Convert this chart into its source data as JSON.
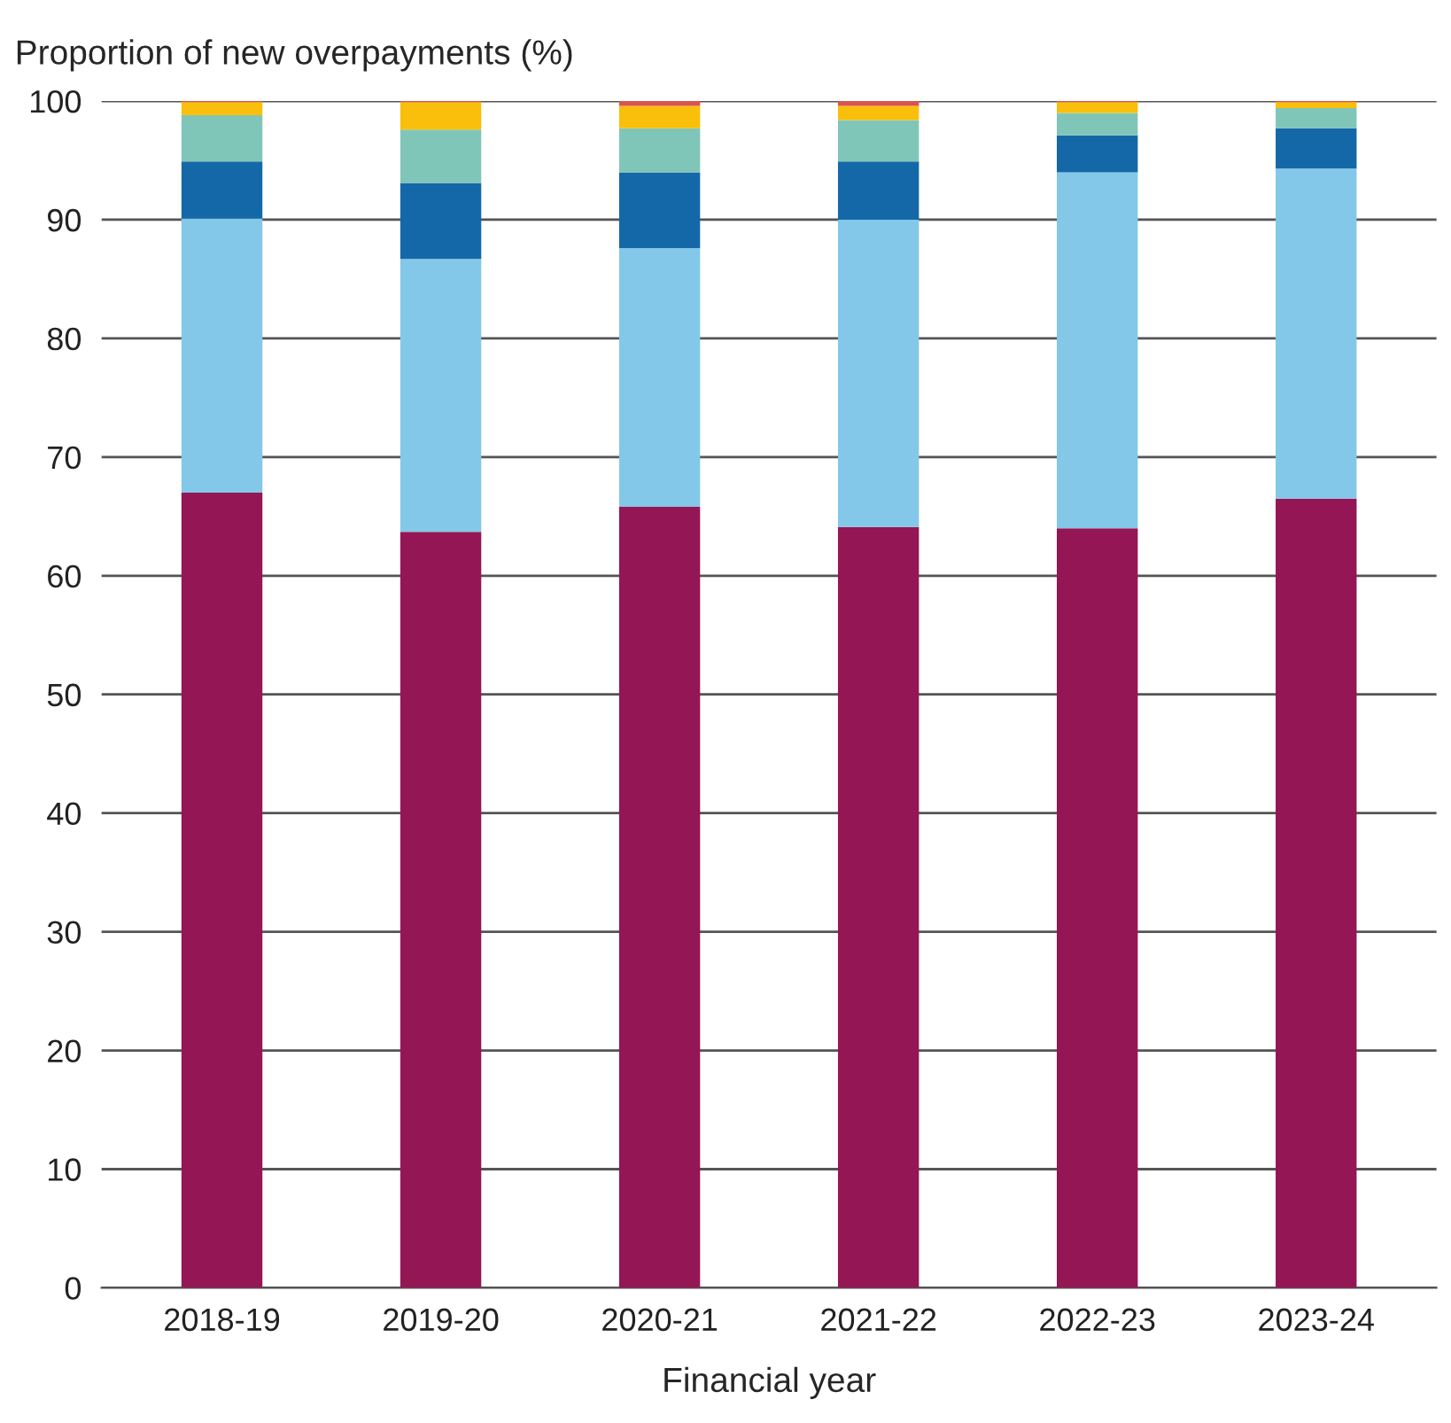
{
  "chart_data": {
    "type": "bar",
    "stacked": true,
    "ylabel": "Proportion of new overpayments (%)",
    "xlabel": "Financial year",
    "categories": [
      "2018-19",
      "2019-20",
      "2020-21",
      "2021-22",
      "2022-23",
      "2023-24"
    ],
    "series": [
      {
        "color": "#941655",
        "values": [
          67.0,
          63.7,
          65.8,
          64.1,
          64.0,
          66.5
        ]
      },
      {
        "color": "#83c8e8",
        "values": [
          23.1,
          23.0,
          21.8,
          25.9,
          30.0,
          27.8
        ]
      },
      {
        "color": "#1568a8",
        "values": [
          4.8,
          6.4,
          6.4,
          4.9,
          3.1,
          3.4
        ]
      },
      {
        "color": "#80c6b8",
        "values": [
          3.9,
          4.5,
          3.7,
          3.5,
          1.9,
          1.7
        ]
      },
      {
        "color": "#fabf0a",
        "values": [
          1.1,
          2.3,
          1.9,
          1.2,
          0.9,
          0.5
        ]
      },
      {
        "color": "#d9534f",
        "values": [
          0.1,
          0.1,
          0.4,
          0.4,
          0.1,
          0.1
        ]
      }
    ],
    "ylim": [
      0,
      100
    ],
    "yticks": [
      0,
      10,
      20,
      30,
      40,
      50,
      60,
      70,
      80,
      90,
      100
    ],
    "grid": "y"
  }
}
